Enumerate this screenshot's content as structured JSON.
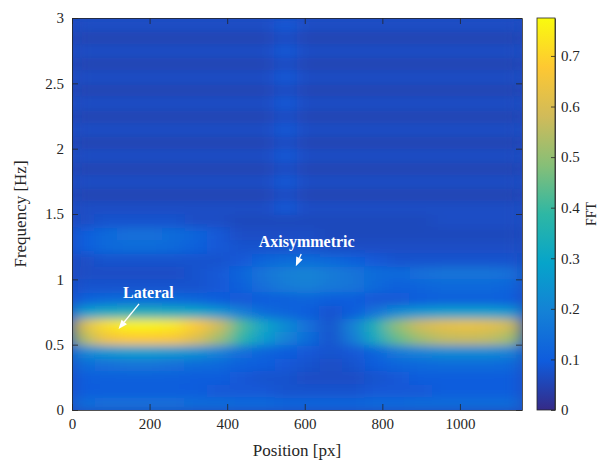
{
  "chart_data": {
    "type": "heatmap",
    "x_label": "Position [px]",
    "y_label": "Frequency [Hz]",
    "xlim": [
      0,
      1160
    ],
    "ylim": [
      0,
      3
    ],
    "xticks": [
      0,
      200,
      400,
      600,
      800,
      1000
    ],
    "yticks": [
      0,
      0.5,
      1,
      1.5,
      2,
      2.5,
      3
    ],
    "x_edges": [
      0,
      58,
      116,
      174,
      232,
      290,
      348,
      406,
      464,
      522,
      580,
      638,
      696,
      754,
      812,
      870,
      928,
      986,
      1044,
      1102,
      1160
    ],
    "y_edges": [
      0,
      0.1,
      0.2,
      0.3,
      0.4,
      0.5,
      0.6,
      0.7,
      0.8,
      0.9,
      1,
      1.1,
      1.2,
      1.3,
      1.4,
      1.5,
      1.6,
      1.7,
      1.8,
      1.9,
      2,
      2.1,
      2.2,
      2.3,
      2.4,
      2.5,
      2.6,
      2.7,
      2.8,
      2.9,
      3
    ],
    "z": [
      [
        0.14,
        0.15,
        0.15,
        0.15,
        0.15,
        0.14,
        0.14,
        0.13,
        0.13,
        0.12,
        0.12,
        0.12,
        0.12,
        0.13,
        0.13,
        0.14,
        0.14,
        0.14,
        0.14,
        0.14
      ],
      [
        0.1,
        0.1,
        0.1,
        0.1,
        0.1,
        0.1,
        0.09,
        0.09,
        0.09,
        0.08,
        0.08,
        0.08,
        0.08,
        0.09,
        0.09,
        0.09,
        0.1,
        0.1,
        0.1,
        0.1
      ],
      [
        0.1,
        0.11,
        0.11,
        0.11,
        0.11,
        0.1,
        0.1,
        0.09,
        0.08,
        0.08,
        0.07,
        0.07,
        0.07,
        0.08,
        0.09,
        0.1,
        0.1,
        0.1,
        0.1,
        0.1
      ],
      [
        0.14,
        0.15,
        0.16,
        0.16,
        0.15,
        0.14,
        0.13,
        0.11,
        0.1,
        0.09,
        0.08,
        0.07,
        0.08,
        0.1,
        0.12,
        0.13,
        0.14,
        0.14,
        0.14,
        0.13
      ],
      [
        0.21,
        0.25,
        0.27,
        0.27,
        0.26,
        0.24,
        0.2,
        0.15,
        0.12,
        0.1,
        0.09,
        0.08,
        0.09,
        0.12,
        0.18,
        0.2,
        0.22,
        0.22,
        0.22,
        0.2
      ],
      [
        0.54,
        0.65,
        0.68,
        0.68,
        0.67,
        0.61,
        0.52,
        0.38,
        0.27,
        0.2,
        0.14,
        0.08,
        0.18,
        0.32,
        0.45,
        0.52,
        0.56,
        0.57,
        0.56,
        0.52
      ],
      [
        0.6,
        0.72,
        0.76,
        0.76,
        0.74,
        0.68,
        0.58,
        0.42,
        0.3,
        0.22,
        0.15,
        0.08,
        0.2,
        0.35,
        0.5,
        0.58,
        0.62,
        0.63,
        0.62,
        0.58
      ],
      [
        0.27,
        0.32,
        0.34,
        0.34,
        0.33,
        0.31,
        0.26,
        0.19,
        0.14,
        0.12,
        0.1,
        0.08,
        0.1,
        0.16,
        0.23,
        0.26,
        0.28,
        0.28,
        0.28,
        0.26
      ],
      [
        0.11,
        0.13,
        0.14,
        0.14,
        0.13,
        0.12,
        0.1,
        0.09,
        0.1,
        0.11,
        0.12,
        0.1,
        0.1,
        0.09,
        0.09,
        0.1,
        0.11,
        0.11,
        0.11,
        0.1
      ],
      [
        0.08,
        0.08,
        0.08,
        0.08,
        0.08,
        0.08,
        0.09,
        0.11,
        0.15,
        0.18,
        0.19,
        0.17,
        0.16,
        0.13,
        0.11,
        0.12,
        0.13,
        0.13,
        0.13,
        0.12
      ],
      [
        0.07,
        0.07,
        0.07,
        0.07,
        0.07,
        0.08,
        0.09,
        0.12,
        0.16,
        0.19,
        0.2,
        0.18,
        0.16,
        0.14,
        0.13,
        0.15,
        0.16,
        0.16,
        0.16,
        0.15
      ],
      [
        0.07,
        0.08,
        0.08,
        0.08,
        0.08,
        0.08,
        0.08,
        0.09,
        0.12,
        0.14,
        0.14,
        0.13,
        0.11,
        0.09,
        0.08,
        0.08,
        0.08,
        0.08,
        0.08,
        0.08
      ],
      [
        0.1,
        0.13,
        0.14,
        0.14,
        0.13,
        0.11,
        0.09,
        0.08,
        0.08,
        0.08,
        0.08,
        0.07,
        0.07,
        0.07,
        0.07,
        0.07,
        0.07,
        0.07,
        0.07,
        0.07
      ],
      [
        0.1,
        0.13,
        0.15,
        0.15,
        0.14,
        0.12,
        0.09,
        0.07,
        0.07,
        0.07,
        0.07,
        0.06,
        0.06,
        0.06,
        0.06,
        0.06,
        0.06,
        0.06,
        0.06,
        0.06
      ],
      [
        0.07,
        0.08,
        0.08,
        0.08,
        0.08,
        0.07,
        0.07,
        0.06,
        0.06,
        0.06,
        0.06,
        0.06,
        0.06,
        0.06,
        0.06,
        0.06,
        0.07,
        0.07,
        0.07,
        0.07
      ],
      [
        0.07,
        0.07,
        0.07,
        0.07,
        0.07,
        0.07,
        0.07,
        0.07,
        0.07,
        0.09,
        0.07,
        0.07,
        0.07,
        0.07,
        0.07,
        0.07,
        0.07,
        0.07,
        0.07,
        0.07
      ],
      [
        0.05,
        0.05,
        0.05,
        0.05,
        0.05,
        0.05,
        0.05,
        0.05,
        0.05,
        0.07,
        0.05,
        0.05,
        0.05,
        0.05,
        0.05,
        0.05,
        0.05,
        0.05,
        0.05,
        0.05
      ],
      [
        0.07,
        0.07,
        0.07,
        0.07,
        0.07,
        0.07,
        0.07,
        0.07,
        0.07,
        0.09,
        0.07,
        0.07,
        0.07,
        0.07,
        0.07,
        0.07,
        0.07,
        0.07,
        0.07,
        0.07
      ],
      [
        0.05,
        0.05,
        0.05,
        0.05,
        0.05,
        0.05,
        0.05,
        0.05,
        0.05,
        0.07,
        0.05,
        0.05,
        0.05,
        0.05,
        0.05,
        0.05,
        0.05,
        0.05,
        0.05,
        0.05
      ],
      [
        0.07,
        0.07,
        0.07,
        0.07,
        0.07,
        0.07,
        0.07,
        0.07,
        0.07,
        0.09,
        0.07,
        0.07,
        0.07,
        0.07,
        0.07,
        0.07,
        0.07,
        0.07,
        0.07,
        0.07
      ],
      [
        0.05,
        0.05,
        0.05,
        0.05,
        0.05,
        0.05,
        0.05,
        0.05,
        0.05,
        0.07,
        0.05,
        0.05,
        0.05,
        0.05,
        0.05,
        0.05,
        0.05,
        0.05,
        0.05,
        0.05
      ],
      [
        0.07,
        0.07,
        0.07,
        0.07,
        0.07,
        0.07,
        0.07,
        0.07,
        0.07,
        0.09,
        0.07,
        0.07,
        0.07,
        0.07,
        0.07,
        0.07,
        0.07,
        0.07,
        0.07,
        0.07
      ],
      [
        0.05,
        0.05,
        0.05,
        0.05,
        0.05,
        0.05,
        0.05,
        0.05,
        0.05,
        0.07,
        0.05,
        0.05,
        0.05,
        0.05,
        0.05,
        0.05,
        0.05,
        0.05,
        0.05,
        0.05
      ],
      [
        0.07,
        0.07,
        0.07,
        0.07,
        0.07,
        0.07,
        0.07,
        0.07,
        0.07,
        0.09,
        0.07,
        0.07,
        0.07,
        0.07,
        0.07,
        0.07,
        0.07,
        0.07,
        0.07,
        0.07
      ],
      [
        0.05,
        0.05,
        0.05,
        0.05,
        0.05,
        0.05,
        0.05,
        0.05,
        0.05,
        0.07,
        0.05,
        0.05,
        0.05,
        0.05,
        0.05,
        0.05,
        0.05,
        0.05,
        0.05,
        0.05
      ],
      [
        0.07,
        0.07,
        0.07,
        0.07,
        0.07,
        0.07,
        0.07,
        0.07,
        0.07,
        0.09,
        0.07,
        0.07,
        0.07,
        0.07,
        0.07,
        0.07,
        0.07,
        0.07,
        0.07,
        0.07
      ],
      [
        0.05,
        0.05,
        0.05,
        0.05,
        0.05,
        0.05,
        0.05,
        0.05,
        0.05,
        0.07,
        0.05,
        0.05,
        0.05,
        0.05,
        0.05,
        0.05,
        0.05,
        0.05,
        0.05,
        0.05
      ],
      [
        0.07,
        0.07,
        0.07,
        0.07,
        0.07,
        0.07,
        0.07,
        0.07,
        0.07,
        0.09,
        0.07,
        0.07,
        0.07,
        0.07,
        0.07,
        0.07,
        0.07,
        0.07,
        0.07,
        0.07
      ],
      [
        0.05,
        0.05,
        0.05,
        0.05,
        0.05,
        0.05,
        0.05,
        0.05,
        0.05,
        0.07,
        0.05,
        0.05,
        0.05,
        0.05,
        0.05,
        0.05,
        0.05,
        0.05,
        0.05,
        0.05
      ],
      [
        0.07,
        0.07,
        0.07,
        0.07,
        0.07,
        0.07,
        0.07,
        0.07,
        0.07,
        0.09,
        0.07,
        0.07,
        0.07,
        0.07,
        0.07,
        0.07,
        0.07,
        0.07,
        0.07,
        0.07
      ]
    ],
    "colorbar_label": "FFT",
    "clim": [
      0,
      0.775
    ],
    "cticks": [
      0,
      0.1,
      0.2,
      0.3,
      0.4,
      0.5,
      0.6,
      0.7
    ],
    "annotations": [
      {
        "text": "Lateral",
        "xy": [
          120,
          0.62
        ],
        "xytext": [
          197,
          0.9
        ]
      },
      {
        "text": "Axisymmetric",
        "xy": [
          577,
          1.1
        ],
        "xytext": [
          605,
          1.29
        ]
      }
    ]
  }
}
